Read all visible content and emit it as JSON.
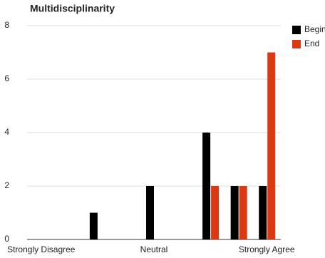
{
  "chart_data": {
    "type": "bar",
    "title": "Multidisciplinarity",
    "categories": [
      "Strongly Disagree",
      null,
      null,
      null,
      "Neutral",
      null,
      null,
      null,
      "Strongly Agree"
    ],
    "series": [
      {
        "name": "Begin",
        "color": "#000000",
        "values": [
          0,
          0,
          1,
          0,
          2,
          0,
          4,
          2,
          2
        ]
      },
      {
        "name": "End",
        "color": "#dc3912",
        "values": [
          0,
          0,
          0,
          0,
          0,
          0,
          2,
          2,
          7
        ]
      }
    ],
    "ylim": [
      0,
      8
    ],
    "yticks": [
      0,
      2,
      4,
      6,
      8
    ],
    "grid": true,
    "legend": "right"
  }
}
